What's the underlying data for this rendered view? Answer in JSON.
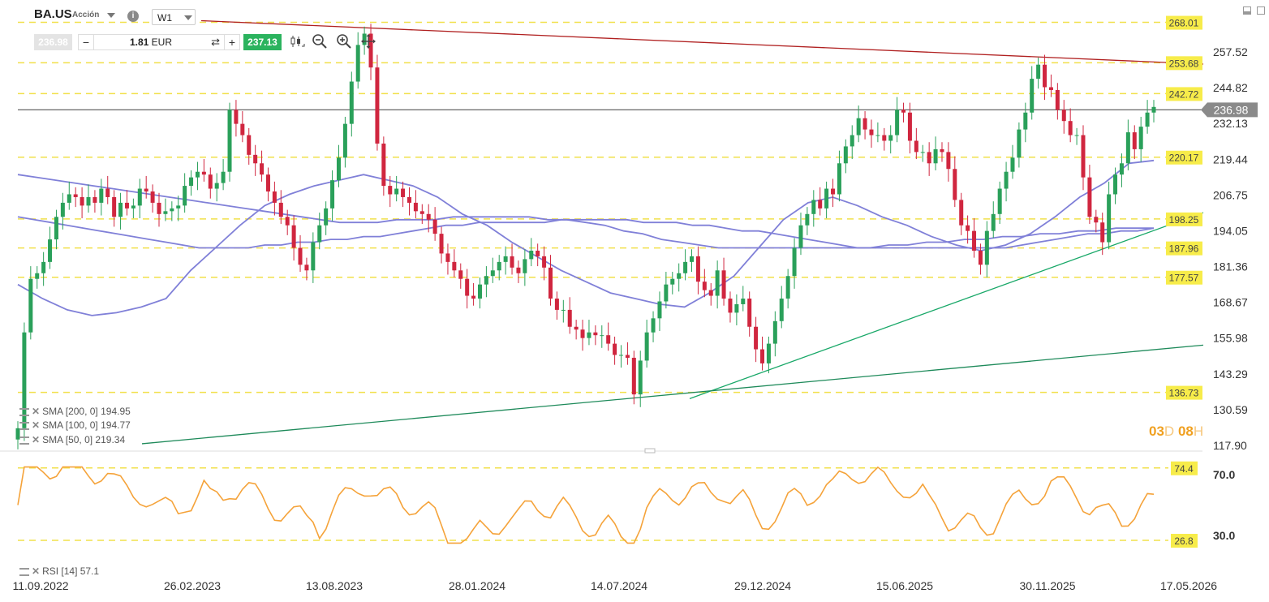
{
  "toolbar": {
    "symbol": "BA.US",
    "instrument_type": "Acción",
    "info_icon": "i",
    "timeframe": "W1",
    "sell_price": "236.98",
    "quantity_value": "1.81",
    "quantity_currency": "EUR",
    "buy_price": "237.13",
    "minus_label": "−",
    "plus_label": "+",
    "swap_label": "⇄",
    "icons": [
      "candlestick-icon",
      "zoom-out-icon",
      "zoom-in-icon",
      "move-icon"
    ]
  },
  "window_controls": [
    "minimize-icon",
    "maximize-icon"
  ],
  "indicators": {
    "sma200": "SMA [200, 0] 194.95",
    "sma100": "SMA [100, 0] 194.77",
    "sma50": "SMA [50, 0] 219.34",
    "rsi": "RSI [14] 57.1"
  },
  "timer": {
    "d": "03",
    "d_unit": "D",
    "h": "08",
    "h_unit": "H"
  },
  "colors": {
    "bull": "#2aa05a",
    "bear": "#d0263f",
    "sma": "#8080d8",
    "level_line": "#f1e04a",
    "level_label_bg": "#f7ec4a",
    "resistance": "#b02020",
    "support": "#18a868",
    "rsi": "#f5a33a",
    "current_price_bg": "#8a8a8a"
  },
  "chart_data": {
    "type": "candlestick",
    "symbol": "BA.US",
    "timeframe": "W1",
    "y_ticks": [
      "257.52",
      "244.82",
      "232.13",
      "219.44",
      "206.75",
      "194.05",
      "181.36",
      "168.67",
      "155.98",
      "143.29",
      "130.59",
      "117.90"
    ],
    "ylim": [
      117.9,
      270.2
    ],
    "x_ticks": [
      "11.09.2022",
      "26.02.2023",
      "13.08.2023",
      "28.01.2024",
      "14.07.2024",
      "29.12.2024",
      "15.06.2025",
      "30.11.2025",
      "17.05.2026"
    ],
    "levels": [
      "268.01",
      "253.68",
      "242.72",
      "220.17",
      "198.25",
      "187.96",
      "177.57",
      "136.73"
    ],
    "current_price": "236.98",
    "sma_last_values": {
      "sma200": 194.95,
      "sma100": 194.77,
      "sma50": 219.34
    },
    "close_series": [
      124,
      158,
      177,
      179,
      183,
      191,
      199,
      204,
      207,
      206,
      203,
      206,
      204,
      209,
      206,
      199,
      204,
      202,
      203,
      209,
      208,
      204,
      200,
      201,
      202,
      203,
      210,
      213,
      215,
      214,
      209,
      211,
      215,
      237,
      232,
      228,
      221,
      218,
      214,
      208,
      204,
      199,
      196,
      188,
      182,
      180,
      190,
      196,
      202,
      212,
      220,
      232,
      247,
      260,
      264,
      252,
      225,
      210,
      207,
      209,
      206,
      204,
      201,
      200,
      198,
      193,
      186,
      183,
      180,
      177,
      171,
      170,
      175,
      178,
      180,
      183,
      185,
      181,
      179,
      184,
      187,
      185,
      181,
      170,
      166,
      166,
      160,
      159,
      156,
      158,
      157,
      157,
      154,
      150,
      150,
      149,
      136,
      148,
      158,
      163,
      169,
      175,
      177,
      179,
      183,
      185,
      176,
      173,
      171,
      180,
      170,
      165,
      168,
      170,
      160,
      152,
      147,
      154,
      162,
      170,
      178,
      188,
      196,
      200,
      205,
      202,
      209,
      207,
      218,
      224,
      228,
      234,
      230,
      228,
      228,
      226,
      228,
      237,
      236,
      226,
      222,
      222,
      218,
      223,
      222,
      216,
      205,
      196,
      194,
      187,
      182,
      194,
      200,
      209,
      215,
      220,
      230,
      236,
      248,
      253,
      245,
      244,
      237,
      233,
      228,
      228,
      213,
      199,
      197,
      190,
      207,
      214,
      218,
      229,
      223,
      231,
      236,
      238
    ],
    "sma200": [
      199,
      198,
      197,
      196,
      195,
      194,
      193,
      192,
      191,
      190,
      189,
      188,
      188,
      188,
      188,
      189,
      189,
      190,
      190,
      191,
      191,
      192,
      192,
      193,
      194,
      195,
      196,
      196,
      197,
      197,
      197,
      197,
      197,
      198,
      198,
      198,
      198,
      198,
      197,
      197,
      197,
      196,
      196,
      195,
      194,
      194,
      193,
      192,
      191,
      190,
      189,
      188,
      188,
      188,
      188,
      188,
      188,
      188,
      188,
      188,
      188,
      189,
      190,
      191,
      192,
      193,
      193,
      194,
      194,
      195
    ],
    "sma100": [
      214,
      213,
      212,
      211,
      210,
      209,
      208,
      207,
      206,
      205,
      204,
      203,
      202,
      201,
      200,
      199,
      198,
      197,
      197,
      197,
      198,
      198,
      198,
      199,
      199,
      199,
      199,
      199,
      198,
      198,
      197,
      196,
      194,
      193,
      191,
      190,
      189,
      188,
      188,
      188,
      188,
      188,
      188,
      188,
      188,
      188,
      189,
      189,
      190,
      190,
      191,
      191,
      192,
      192,
      193,
      193,
      194,
      194,
      195,
      195,
      195
    ],
    "sma50": [
      175,
      170,
      166,
      164,
      165,
      167,
      170,
      180,
      188,
      196,
      203,
      207,
      210,
      212,
      214,
      212,
      210,
      206,
      200,
      196,
      190,
      185,
      180,
      176,
      172,
      170,
      168,
      167,
      172,
      178,
      188,
      198,
      204,
      206,
      203,
      199,
      196,
      192,
      189,
      187,
      189,
      193,
      199,
      206,
      211,
      218,
      219
    ],
    "rsi": {
      "levels": [
        "74.4",
        "26.8"
      ],
      "ticks": [
        "70.0",
        "30.0"
      ],
      "ylim": [
        20,
        80
      ],
      "last": 57.1
    }
  }
}
